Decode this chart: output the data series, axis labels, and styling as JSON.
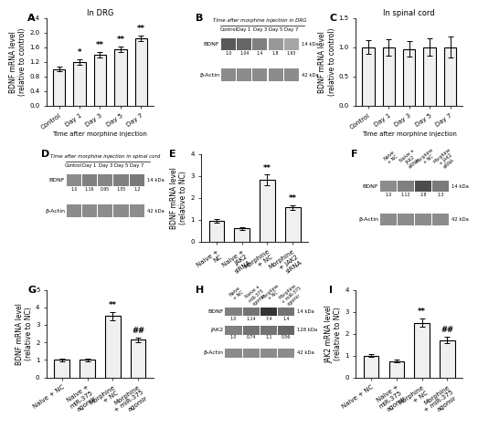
{
  "panel_A": {
    "title": "In DRG",
    "xlabel": "Time after morphine injection",
    "ylabel": "BDNF mRNA level\n(relative to control)",
    "categories": [
      "Control",
      "Day 1",
      "Day 3",
      "Day 5",
      "Day 7"
    ],
    "values": [
      1.0,
      1.2,
      1.4,
      1.55,
      1.85
    ],
    "errors": [
      0.06,
      0.08,
      0.07,
      0.08,
      0.07
    ],
    "ylim": [
      0.0,
      2.4
    ],
    "yticks": [
      0.0,
      0.4,
      0.8,
      1.2,
      1.6,
      2.0,
      2.4
    ],
    "significance": [
      "",
      "*",
      "**",
      "**",
      "**"
    ]
  },
  "panel_C": {
    "title": "In spinal cord",
    "xlabel": "Time after morphine injection",
    "ylabel": "BDNF mRNA level\n(relative to control)",
    "categories": [
      "Control",
      "Day 1",
      "Day 3",
      "Day 5",
      "Day 7"
    ],
    "values": [
      1.0,
      1.0,
      0.97,
      1.0,
      1.0
    ],
    "errors": [
      0.12,
      0.14,
      0.13,
      0.15,
      0.18
    ],
    "ylim": [
      0.0,
      1.5
    ],
    "yticks": [
      0.0,
      0.5,
      1.0,
      1.5
    ],
    "significance": [
      "",
      "",
      "",
      "",
      ""
    ]
  },
  "panel_E": {
    "ylabel": "BDNF mRNA level\n(relative to NC)",
    "categories": [
      "Naive +\nNC",
      "Naive +\nJAK2\nsiRNA",
      "Morphine\n+ NC",
      "Morphine\n+ JAK2\nsiRNA"
    ],
    "values": [
      0.95,
      0.6,
      2.8,
      1.55
    ],
    "errors": [
      0.08,
      0.07,
      0.25,
      0.12
    ],
    "ylim": [
      0,
      4
    ],
    "yticks": [
      0,
      1,
      2,
      3,
      4
    ],
    "significance": [
      "",
      "",
      "**",
      "**"
    ]
  },
  "panel_G": {
    "ylabel": "BDNF mRNA level\n(relative to NC)",
    "categories": [
      "Naive + NC",
      "Naive +\nmiR-375\nagomir",
      "Morphine\n+ NC",
      "Morphine\n+ miR-375\nagomir"
    ],
    "values": [
      1.0,
      1.0,
      3.5,
      2.15
    ],
    "errors": [
      0.06,
      0.08,
      0.25,
      0.12
    ],
    "ylim": [
      0,
      5
    ],
    "yticks": [
      0,
      1,
      2,
      3,
      4,
      5
    ],
    "significance": [
      "",
      "",
      "**",
      "##"
    ]
  },
  "panel_I": {
    "ylabel": "JAK2 mRNA level\n(relative to NC)",
    "categories": [
      "Naive + NC",
      "Naive +\nmiR-375\nagomir",
      "Morphine\n+ NC",
      "Morphine\n+ miR-375\nagomir"
    ],
    "values": [
      1.0,
      0.75,
      2.5,
      1.7
    ],
    "errors": [
      0.07,
      0.06,
      0.2,
      0.15
    ],
    "ylim": [
      0,
      4
    ],
    "yticks": [
      0,
      1,
      2,
      3,
      4
    ],
    "significance": [
      "",
      "",
      "**",
      "##"
    ]
  },
  "bar_color": "#f0f0f0",
  "bar_edgecolor": "#000000",
  "bar_linewidth": 0.8,
  "font_size": 5.5,
  "title_font_size": 6,
  "label_font_size": 5.5,
  "tick_font_size": 5,
  "sig_font_size": 6,
  "blot_B": {
    "title": "Time after morphine injection in DRG",
    "col_labels": [
      "Control",
      "Day 1",
      "Day 3",
      "Day 5",
      "Day 7"
    ],
    "bdnf_vals": [
      "1.0",
      "1.04",
      "1.4",
      "1.8",
      "1.93"
    ],
    "bdnf_intensities": [
      0.65,
      0.6,
      0.5,
      0.4,
      0.35
    ],
    "kda_bdnf": "14 kDa",
    "kda_bactin": "42 kDa"
  },
  "blot_D": {
    "title": "Time after morphine injection in spinal cord",
    "col_labels": [
      "Control",
      "Day 1",
      "Day 3",
      "Day 5",
      "Day 7"
    ],
    "bdnf_vals": [
      "1.0",
      "1.16",
      "0.95",
      "1.05",
      "1.2"
    ],
    "bdnf_intensities": [
      0.45,
      0.5,
      0.48,
      0.5,
      0.52
    ],
    "kda_bdnf": "14 kDa",
    "kda_bactin": "42 kDa"
  },
  "blot_F": {
    "col_labels": [
      "Naive\n+ NC",
      "Naive +\nJAK2\nsiRNA",
      "Morphine\n+ NC",
      "Morphine\n+ JAK2\nsiRNA"
    ],
    "bdnf_vals": [
      "1.0",
      "1.12",
      "2.8",
      "1.3"
    ],
    "bdnf_intensities": [
      0.45,
      0.5,
      0.7,
      0.52
    ],
    "kda_bdnf": "14 kDa",
    "kda_bactin": "42 kDa"
  },
  "blot_H": {
    "col_labels": [
      "Naive\n+ NC",
      "Naive +\nmiR-375\nagomir",
      "Morphine\n+ NC",
      "Morphine\n+ miR-375\nagomir"
    ],
    "bdnf_vals": [
      "1.0",
      "1.14",
      "7.4",
      "1.4"
    ],
    "jak2_vals": [
      "1.0",
      "0.74",
      "1.1",
      "0.56"
    ],
    "bdnf_intensities": [
      0.5,
      0.55,
      0.8,
      0.55
    ],
    "jak2_intensities": [
      0.5,
      0.55,
      0.55,
      0.6
    ],
    "kda_bdnf": "14 kDa",
    "kda_jak2": "128 kDa",
    "kda_bactin": "42 kDa"
  }
}
